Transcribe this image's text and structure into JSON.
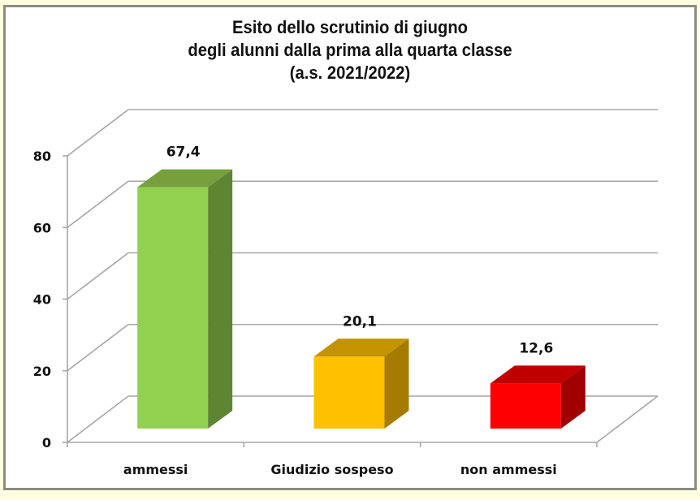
{
  "chart_data": {
    "type": "bar",
    "style": "3d-column",
    "title": "Esito dello scrutinio di giugno degli alunni dalla prima alla quarta classe (a.s. 2021/2022)",
    "title_lines": [
      "Esito dello scrutinio di giugno",
      "degli alunni dalla prima alla quarta classe",
      "(a.s. 2021/2022)"
    ],
    "categories": [
      "ammessi",
      "Giudizio sospeso",
      "non ammessi"
    ],
    "values": [
      67.4,
      20.1,
      12.6
    ],
    "value_labels": [
      "67,4",
      "20,1",
      "12,6"
    ],
    "colors": [
      {
        "front": "#92D050",
        "top": "#76A03E",
        "side": "#5E8632"
      },
      {
        "front": "#FFC000",
        "top": "#C49300",
        "side": "#A67C00"
      },
      {
        "front": "#FF0000",
        "top": "#C00000",
        "side": "#A00000"
      }
    ],
    "xlabel": "",
    "ylabel": "",
    "ylim": [
      0,
      80
    ],
    "yticks": [
      0,
      20,
      40,
      60,
      80
    ],
    "ytick_labels": [
      "0",
      "20",
      "40",
      "60",
      "80"
    ],
    "grid": true,
    "legend": null
  },
  "colors": {
    "page_background": "#FFFFE0",
    "frame_border": "#8C8C84",
    "plot_background": "#FFFFFF",
    "gridline": "#A6A6A6"
  }
}
